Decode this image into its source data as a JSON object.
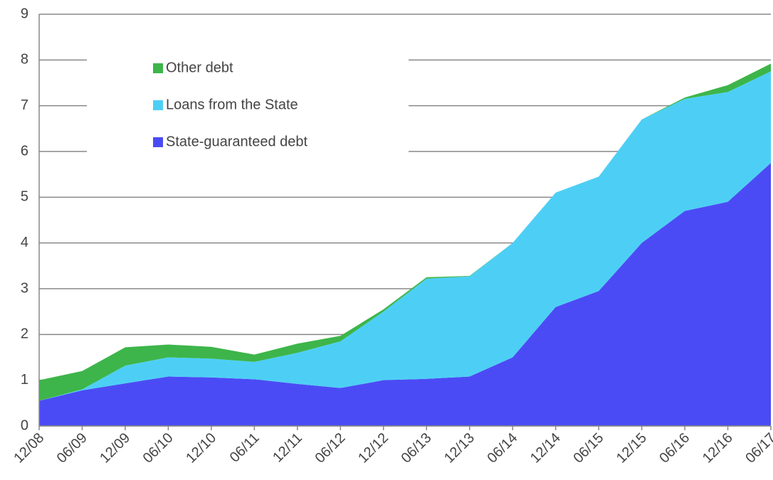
{
  "chart_data": {
    "type": "stacked_area",
    "categories": [
      "12/08",
      "06/09",
      "12/09",
      "06/10",
      "12/10",
      "06/11",
      "12/11",
      "06/12",
      "12/12",
      "06/13",
      "12/13",
      "06/14",
      "12/14",
      "06/15",
      "12/15",
      "06/16",
      "12/16",
      "06/17"
    ],
    "series": [
      {
        "name": "State-guaranteed debt",
        "color": "#4b4bf5",
        "values": [
          0.55,
          0.78,
          0.93,
          1.08,
          1.06,
          1.02,
          0.92,
          0.83,
          1.0,
          1.03,
          1.08,
          1.5,
          2.6,
          2.95,
          4.0,
          4.7,
          4.9,
          5.75
        ]
      },
      {
        "name": "Loans from the State",
        "color": "#4dcff5",
        "values": [
          0,
          0.02,
          0.39,
          0.42,
          0.41,
          0.38,
          0.68,
          1.02,
          1.5,
          2.19,
          2.19,
          2.5,
          2.5,
          2.5,
          2.7,
          2.45,
          2.4,
          2.0
        ]
      },
      {
        "name": "Other debt",
        "color": "#3db54a",
        "values": [
          0.45,
          0.4,
          0.4,
          0.28,
          0.26,
          0.16,
          0.2,
          0.12,
          0.05,
          0.03,
          0.01,
          0,
          0,
          0,
          0,
          0.03,
          0.15,
          0.17
        ]
      }
    ],
    "ylim": [
      0,
      9
    ],
    "yticks": [
      0,
      1,
      2,
      3,
      4,
      5,
      6,
      7,
      8,
      9
    ],
    "grid": true
  }
}
